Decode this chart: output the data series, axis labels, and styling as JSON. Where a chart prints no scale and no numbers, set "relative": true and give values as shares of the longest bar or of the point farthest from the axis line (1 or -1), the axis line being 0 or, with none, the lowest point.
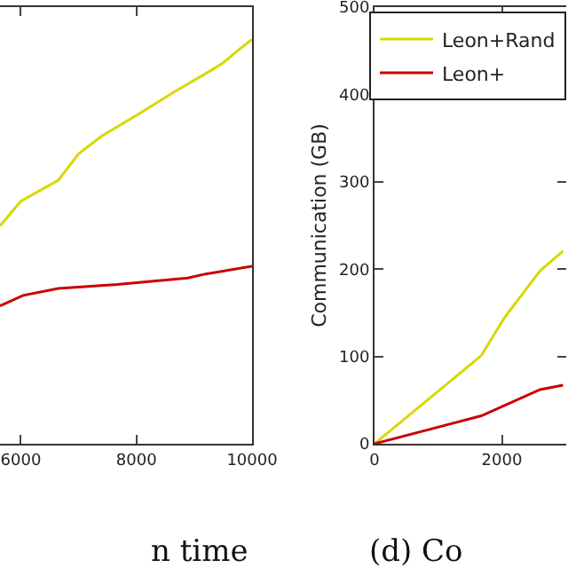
{
  "chart_data": [
    {
      "type": "line",
      "relative": true,
      "tick_labels": "x",
      "xlim": [
        5640,
        10000
      ],
      "xticks": [
        6000,
        8000,
        10000
      ],
      "annotations": [
        "n time"
      ],
      "series": [
        {
          "color": "#d8d800",
          "x": [
            5640,
            6000,
            6650,
            7000,
            7400,
            8000,
            8650,
            9250,
            9500,
            9800,
            10000
          ],
          "values": [
            0.539,
            0.6,
            0.652,
            0.717,
            0.761,
            0.812,
            0.87,
            0.92,
            0.942,
            0.978,
            1
          ]
        },
        {
          "color": "#cc0000",
          "x": [
            5640,
            6040,
            6650,
            7670,
            8890,
            9200,
            10000
          ],
          "values": [
            0.341,
            0.367,
            0.384,
            0.394,
            0.41,
            0.42,
            0.439
          ]
        }
      ]
    },
    {
      "type": "line",
      "ylabel": "Communication (GB)",
      "xlim": [
        0,
        3010
      ],
      "xticks": [
        0,
        2000
      ],
      "ylim": [
        0,
        500
      ],
      "yticks": [
        0,
        100,
        200,
        300,
        400,
        500
      ],
      "legend": "top left",
      "annotations": [
        "(d) Co"
      ],
      "series": [
        {
          "name": "Leon+Rand",
          "color": "#d8d800",
          "x": [
            0,
            1677,
            2046,
            2600,
            2920,
            2960
          ],
          "values": [
            0,
            101,
            145,
            198,
            218,
            221
          ]
        },
        {
          "name": "Leon+",
          "color": "#cc0000",
          "x": [
            0,
            1677,
            2600,
            2960
          ],
          "values": [
            0,
            32,
            62,
            67
          ]
        }
      ]
    }
  ]
}
